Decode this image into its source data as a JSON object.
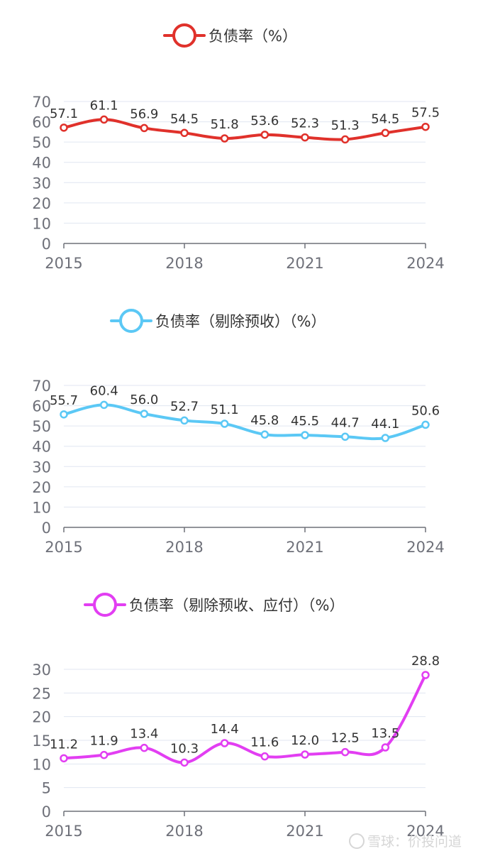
{
  "chart_data": [
    {
      "type": "line",
      "legend": "负债率（%）",
      "color": "#e0312b",
      "x": [
        2015,
        2016,
        2017,
        2018,
        2019,
        2020,
        2021,
        2022,
        2023,
        2024
      ],
      "values": [
        57.1,
        61.1,
        56.9,
        54.5,
        51.8,
        53.6,
        52.3,
        51.3,
        54.5,
        57.5
      ],
      "data_labels": [
        "57.1",
        "61.1",
        "56.9",
        "54.5",
        "51.8",
        "53.6",
        "52.3",
        "51.3",
        "54.5",
        "57.5"
      ],
      "x_tick_labels": [
        "2015",
        "2018",
        "2021",
        "2024"
      ],
      "y_tick_labels": [
        "0",
        "10",
        "20",
        "30",
        "40",
        "50",
        "60",
        "70"
      ],
      "ylim": [
        0,
        70
      ],
      "grid": true,
      "legend_position": "top-center"
    },
    {
      "type": "line",
      "legend": "负债率（剔除预收）（%）",
      "color": "#5bc8f5",
      "x": [
        2015,
        2016,
        2017,
        2018,
        2019,
        2020,
        2021,
        2022,
        2023,
        2024
      ],
      "values": [
        55.7,
        60.4,
        56.0,
        52.7,
        51.1,
        45.8,
        45.5,
        44.7,
        44.1,
        50.6
      ],
      "data_labels": [
        "55.7",
        "60.4",
        "56.0",
        "52.7",
        "51.1",
        "45.8",
        "45.5",
        "44.7",
        "44.1",
        "50.6"
      ],
      "x_tick_labels": [
        "2015",
        "2018",
        "2021",
        "2024"
      ],
      "y_tick_labels": [
        "0",
        "10",
        "20",
        "30",
        "40",
        "50",
        "60",
        "70"
      ],
      "ylim": [
        0,
        70
      ],
      "grid": true,
      "legend_position": "top-center"
    },
    {
      "type": "line",
      "legend": "负债率（剔除预收、应付）（%）",
      "color": "#e23ef2",
      "x": [
        2015,
        2016,
        2017,
        2018,
        2019,
        2020,
        2021,
        2022,
        2023,
        2024
      ],
      "values": [
        11.2,
        11.9,
        13.4,
        10.3,
        14.4,
        11.6,
        12.0,
        12.5,
        13.5,
        28.8
      ],
      "data_labels": [
        "11.2",
        "11.9",
        "13.4",
        "10.3",
        "14.4",
        "11.6",
        "12.0",
        "12.5",
        "13.5",
        "28.8"
      ],
      "x_tick_labels": [
        "2015",
        "2018",
        "2021",
        "2024"
      ],
      "y_tick_labels": [
        "0",
        "5",
        "10",
        "15",
        "20",
        "25",
        "30"
      ],
      "ylim": [
        0,
        30
      ],
      "grid": true,
      "legend_position": "top-center"
    }
  ],
  "watermark": "雪球：价投问道"
}
